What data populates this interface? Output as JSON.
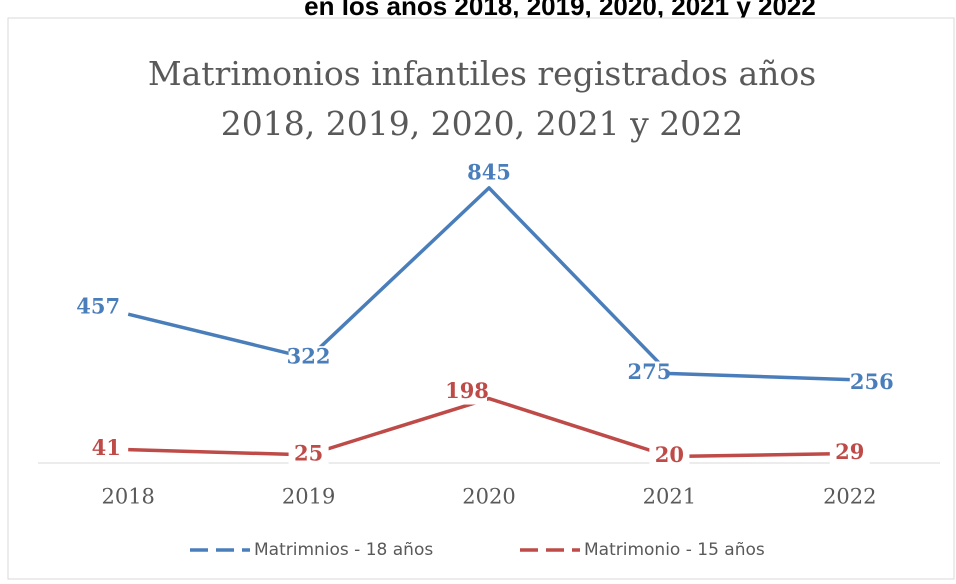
{
  "header": "en los años 2018, 2019, 2020, 2021 y 2022",
  "chart_data": {
    "type": "line",
    "title": [
      "Matrimonios infantiles registrados años",
      "2018, 2019, 2020, 2021 y  2022"
    ],
    "categories": [
      "2018",
      "2019",
      "2020",
      "2021",
      "2022"
    ],
    "series": [
      {
        "name": "Matrimnios - 18 años",
        "color": "#4a7ebb",
        "values": [
          457,
          322,
          845,
          275,
          256
        ]
      },
      {
        "name": "Matrimonio - 15 años",
        "color": "#be4b48",
        "values": [
          41,
          25,
          198,
          20,
          29
        ]
      }
    ],
    "ylim": [
      0,
      900
    ],
    "legend": "bottom"
  }
}
